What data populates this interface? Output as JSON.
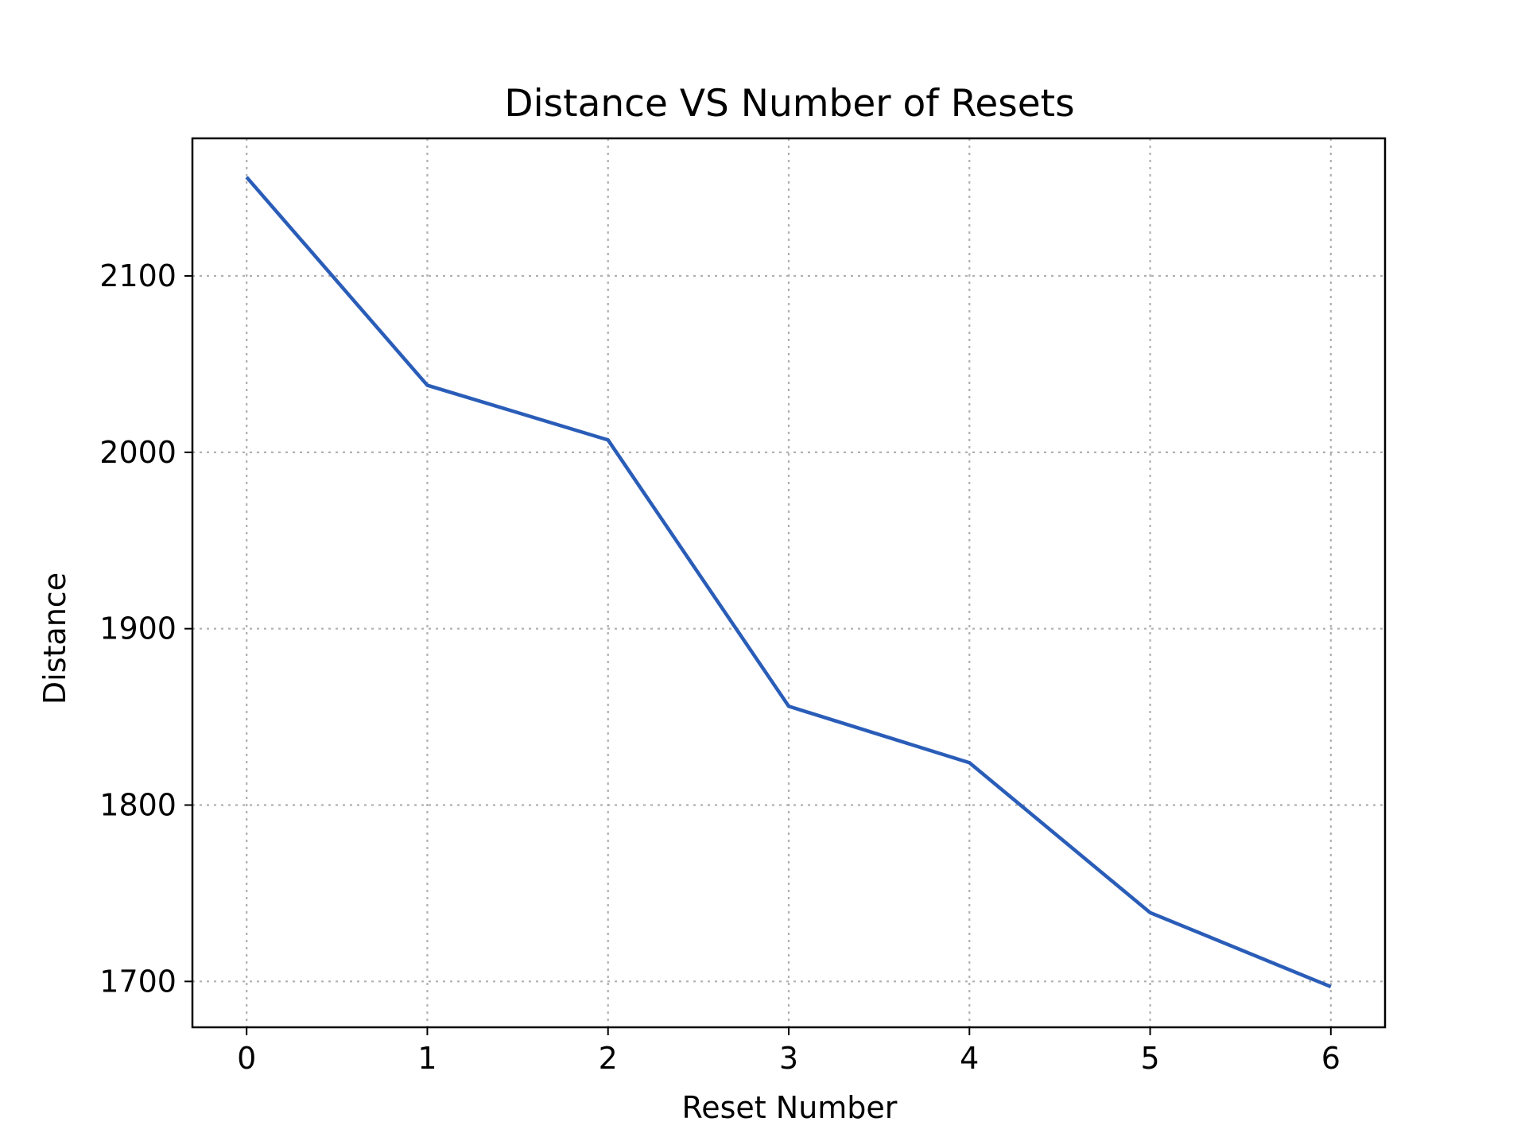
{
  "chart_data": {
    "type": "line",
    "title": "Distance VS Number of Resets",
    "xlabel": "Reset Number",
    "ylabel": "Distance",
    "x": [
      0,
      1,
      2,
      3,
      4,
      5,
      6
    ],
    "series": [
      {
        "values": [
          2156,
          2038,
          2007,
          1856,
          1824,
          1739,
          1697
        ]
      }
    ],
    "xlim": [
      -0.3,
      6.3
    ],
    "ylim": [
      1674,
      2178
    ],
    "xticks": [
      0,
      1,
      2,
      3,
      4,
      5,
      6
    ],
    "yticks": [
      1700,
      1800,
      1900,
      2000,
      2100
    ],
    "grid": true,
    "grid_style": "dotted",
    "line_color": "#2a5db8",
    "grid_color": "#b0b0b0"
  }
}
